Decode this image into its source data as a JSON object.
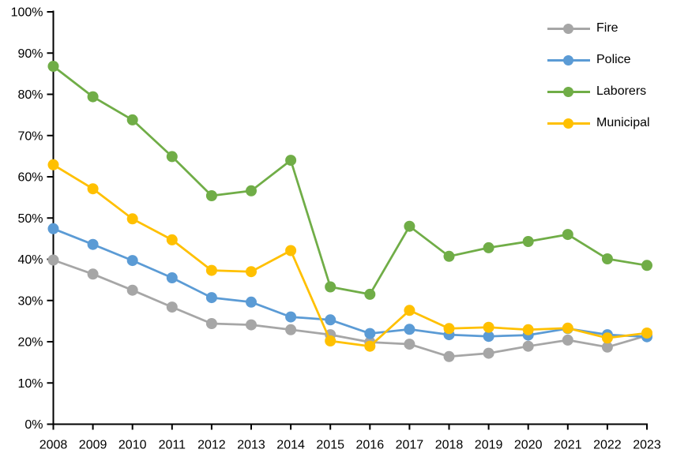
{
  "chart_data": {
    "type": "line",
    "title": "",
    "x": [
      2008,
      2009,
      2010,
      2011,
      2012,
      2013,
      2014,
      2015,
      2016,
      2017,
      2018,
      2019,
      2020,
      2021,
      2022,
      2023
    ],
    "x_labels": [
      "2008",
      "2009",
      "2010",
      "2011",
      "2012",
      "2013",
      "2014",
      "2015",
      "2016",
      "2017",
      "2018",
      "2019",
      "2020",
      "2021",
      "2022",
      "2023"
    ],
    "y_axis": {
      "min": 0,
      "max": 100,
      "tick_step": 10,
      "tick_labels": [
        "0%",
        "10%",
        "20%",
        "30%",
        "40%",
        "50%",
        "60%",
        "70%",
        "80%",
        "90%",
        "100%"
      ]
    },
    "grid": false,
    "background_color": "#FFFFFF",
    "axis_color": "#000000",
    "legend": {
      "position": "top-right",
      "entries": [
        "Fire",
        "Police",
        "Laborers",
        "Municipal"
      ]
    },
    "series": [
      {
        "name": "Fire",
        "color": "#A6A6A6",
        "values": [
          39.8,
          36.4,
          32.5,
          28.4,
          24.4,
          24.1,
          22.9,
          21.7,
          19.9,
          19.4,
          16.4,
          17.2,
          18.9,
          20.4,
          18.7,
          21.5
        ]
      },
      {
        "name": "Police",
        "color": "#5B9BD5",
        "values": [
          47.4,
          43.6,
          39.7,
          35.5,
          30.7,
          29.6,
          26.0,
          25.3,
          22.0,
          23.0,
          21.7,
          21.3,
          21.6,
          23.2,
          21.7,
          21.2
        ]
      },
      {
        "name": "Laborers",
        "color": "#70AD47",
        "values": [
          86.8,
          79.4,
          73.8,
          64.9,
          55.4,
          56.6,
          64.0,
          33.3,
          31.5,
          48.0,
          40.7,
          42.8,
          44.3,
          46.0,
          40.1,
          38.5
        ]
      },
      {
        "name": "Municipal",
        "color": "#FFC000",
        "values": [
          62.9,
          57.1,
          49.8,
          44.7,
          37.3,
          37.0,
          42.1,
          20.2,
          18.9,
          27.6,
          23.2,
          23.5,
          22.9,
          23.3,
          20.9,
          22.1
        ]
      }
    ]
  }
}
